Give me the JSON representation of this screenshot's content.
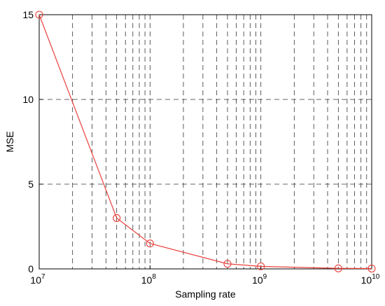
{
  "chart_data": {
    "type": "line",
    "title": "",
    "xlabel": "Sampling rate",
    "ylabel": "MSE",
    "x_scale": "log",
    "xlim": [
      10000000,
      10000000000
    ],
    "ylim": [
      0,
      15
    ],
    "x_ticks": [
      {
        "base": "10",
        "exp": "7"
      },
      {
        "base": "10",
        "exp": "8"
      },
      {
        "base": "10",
        "exp": "9"
      },
      {
        "base": "10",
        "exp": "10"
      }
    ],
    "y_ticks": [
      "0",
      "5",
      "10",
      "15"
    ],
    "grid": true,
    "series": [
      {
        "color": "#e8413c",
        "marker": "circle",
        "x": [
          10000000,
          50000000,
          100000000,
          500000000,
          1000000000,
          5000000000,
          10000000000
        ],
        "y": [
          15,
          3.0,
          1.5,
          0.3,
          0.15,
          0.03,
          0.02
        ]
      }
    ]
  }
}
